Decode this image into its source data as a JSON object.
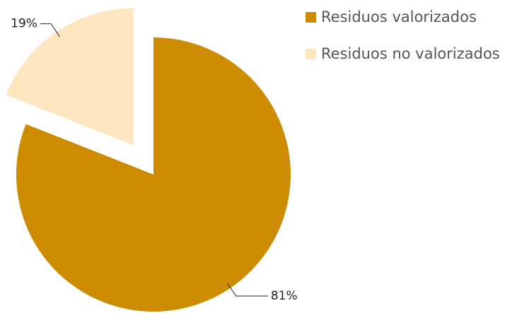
{
  "chart_data": {
    "type": "pie",
    "categories": [
      "Residuos valorizados",
      "Residuos no valorizados"
    ],
    "values": [
      81,
      19
    ],
    "value_labels": [
      "81%",
      "19%"
    ],
    "colors": [
      "#cc8b00",
      "#fde6bf"
    ],
    "exploded": [
      false,
      true
    ],
    "legend": "right"
  }
}
